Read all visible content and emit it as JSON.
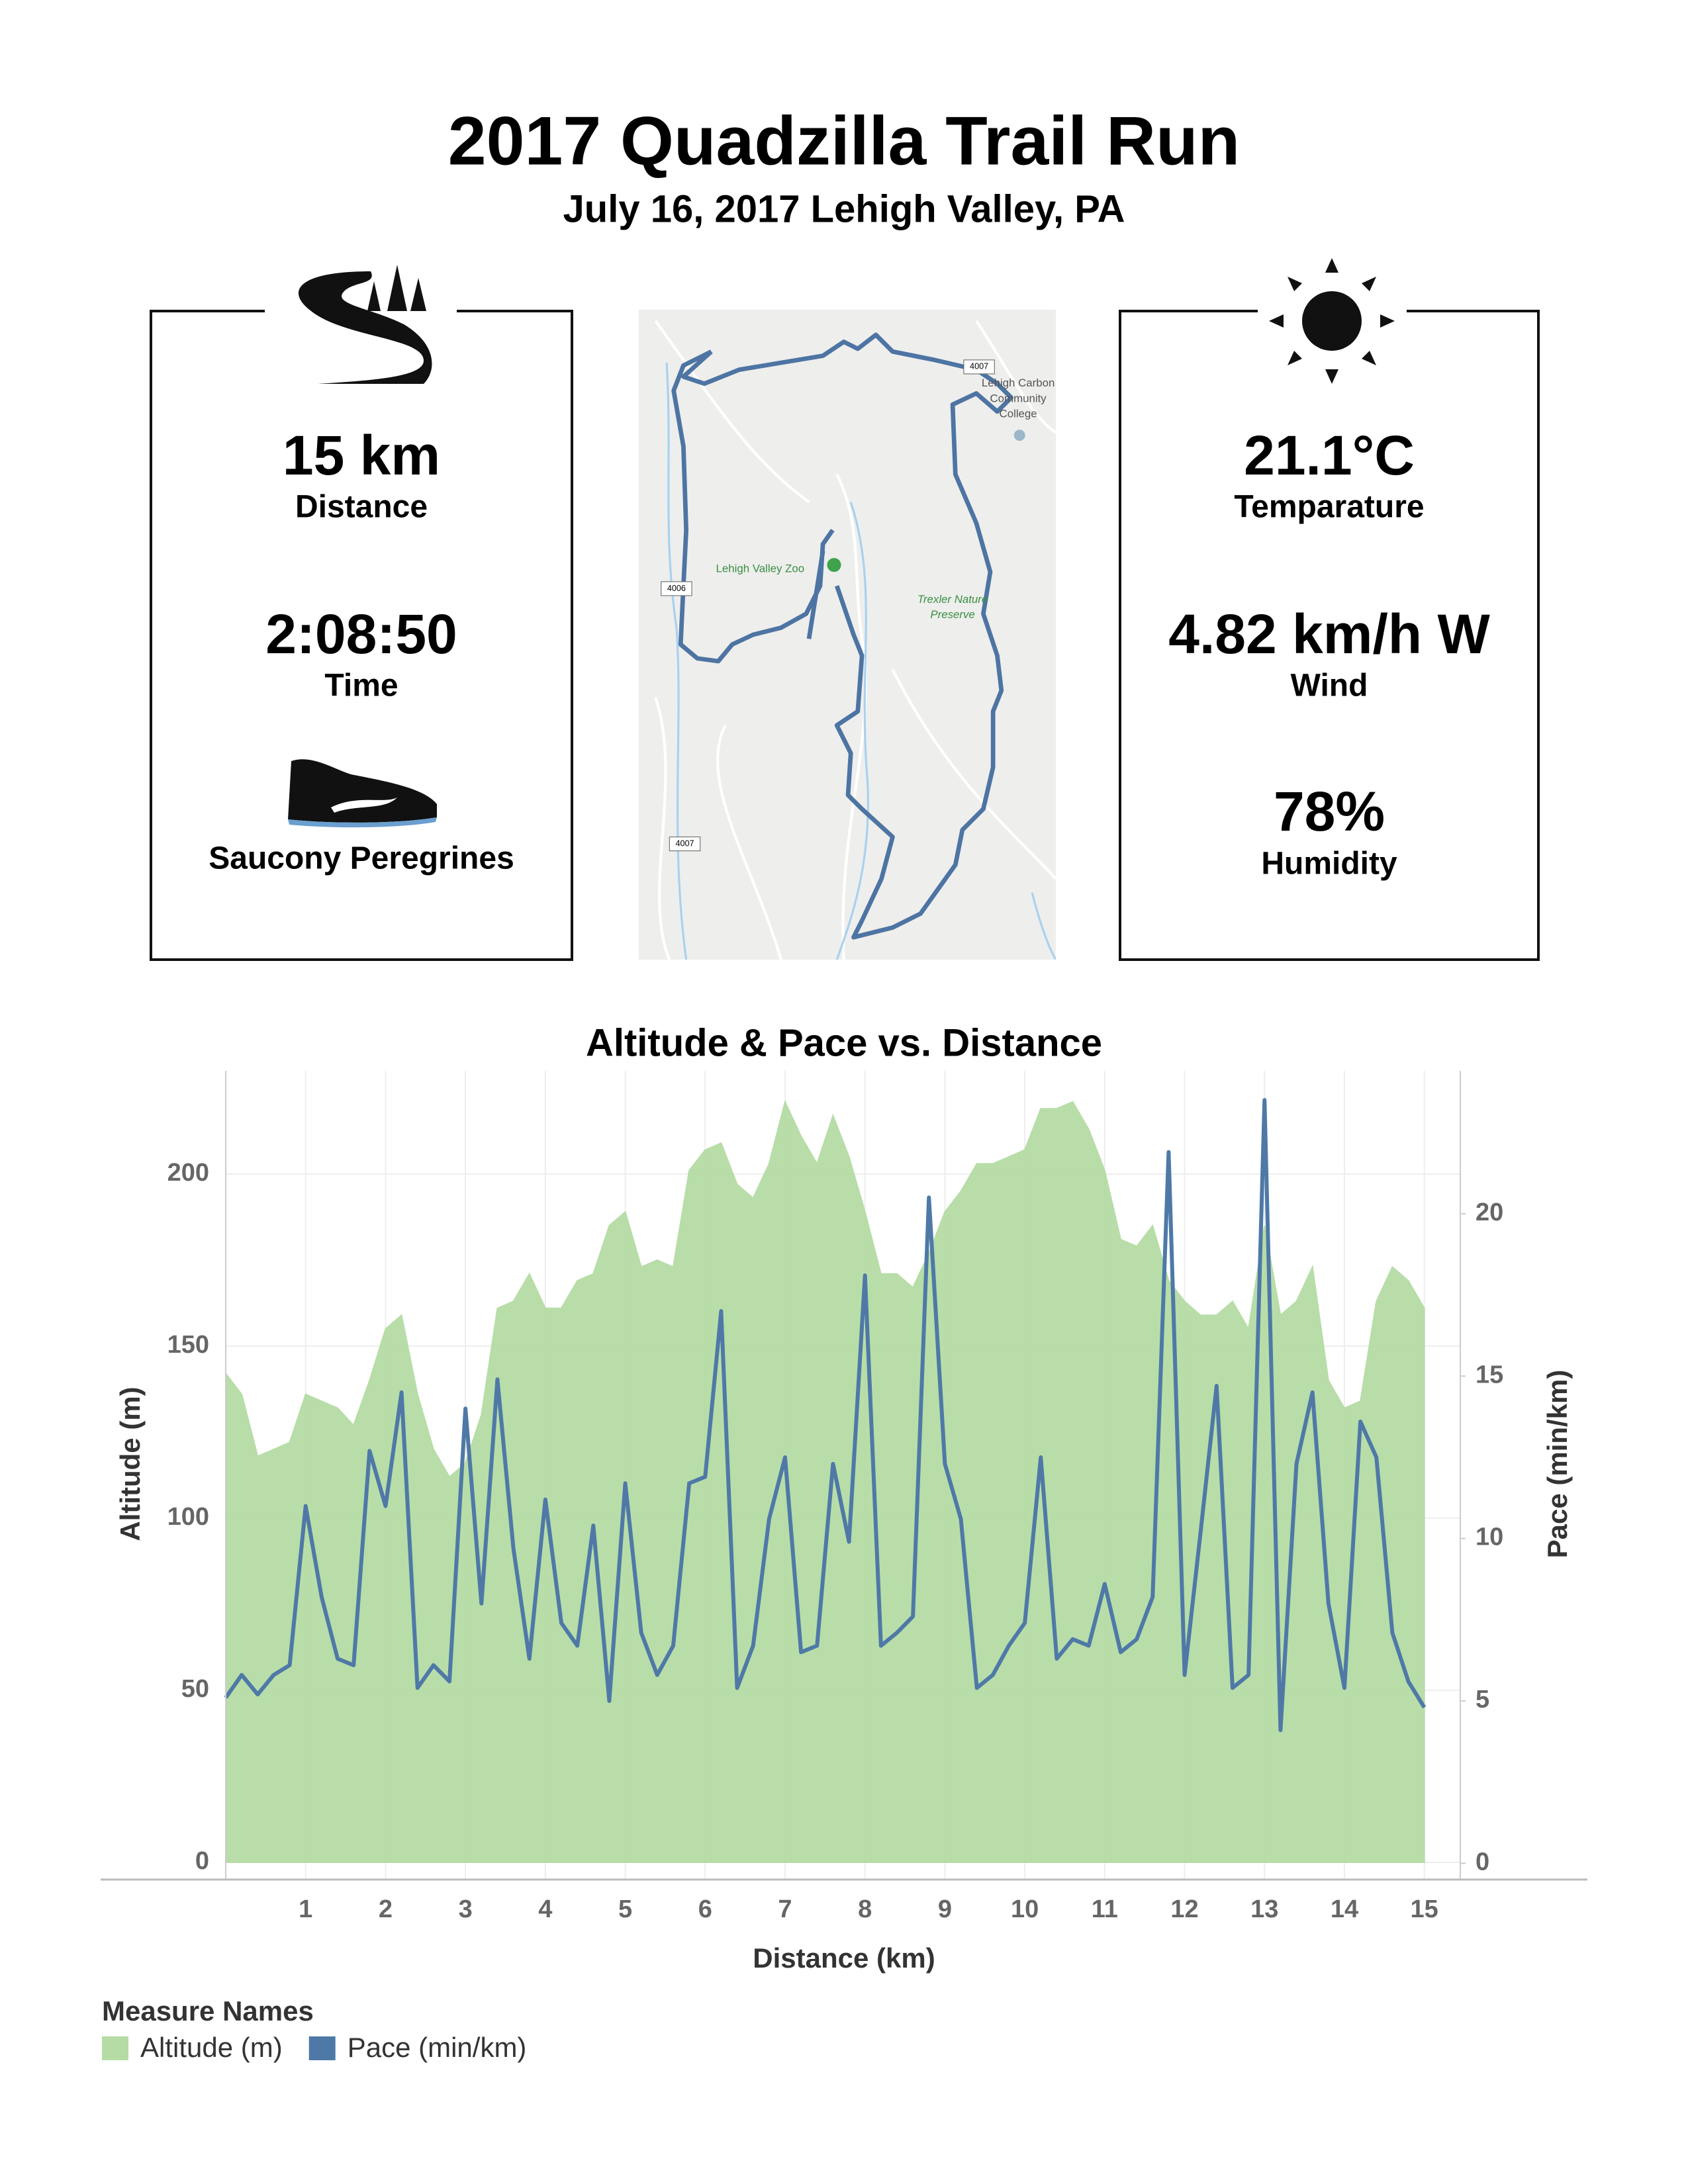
{
  "header": {
    "title": "2017 Quadzilla Trail Run",
    "subtitle": "July 16, 2017  Lehigh Valley, PA"
  },
  "stats": {
    "distance": {
      "value": "15 km",
      "label": "Distance"
    },
    "time": {
      "value": "2:08:50",
      "label": "Time"
    },
    "shoes": "Saucony Peregrines",
    "temperature": {
      "value": "21.1°C",
      "label": "Temparature"
    },
    "wind": {
      "value": "4.82 km/h W",
      "label": "Wind"
    },
    "humidity": {
      "value": "78%",
      "label": "Humidity"
    }
  },
  "map": {
    "labels": [
      "Lehigh Valley Zoo",
      "Trexler Nature",
      "Preserve",
      "Lehigh Carbon",
      "Community",
      "College",
      "4007",
      "4006",
      "4007"
    ]
  },
  "chart_data": {
    "type": "area-line",
    "title": "Altitude & Pace vs. Distance",
    "x_label": "Distance (km)",
    "y_label": "Altitude (m)",
    "y2_label": "Pace (min/km)",
    "legend_title": "Measure Names",
    "grid": true,
    "xlim": [
      0,
      15.45
    ],
    "xticks": [
      1,
      2,
      3,
      4,
      5,
      6,
      7,
      8,
      9,
      10,
      11,
      12,
      13,
      14,
      15
    ],
    "ylim": [
      -5,
      230
    ],
    "yticks": [
      0,
      50,
      100,
      150,
      200
    ],
    "y2lim": [
      -0.5,
      24.4
    ],
    "y2ticks": [
      0,
      5,
      10,
      15,
      20
    ],
    "x": [
      0,
      0.2,
      0.4,
      0.6,
      0.8,
      1.0,
      1.2,
      1.4,
      1.6,
      1.8,
      2.0,
      2.2,
      2.4,
      2.6,
      2.8,
      3.0,
      3.2,
      3.4,
      3.6,
      3.8,
      4.0,
      4.2,
      4.4,
      4.6,
      4.8,
      5.0,
      5.2,
      5.4,
      5.6,
      5.8,
      6.0,
      6.2,
      6.4,
      6.6,
      6.8,
      7.0,
      7.2,
      7.4,
      7.6,
      7.8,
      8.0,
      8.2,
      8.4,
      8.6,
      8.8,
      9.0,
      9.2,
      9.4,
      9.6,
      9.8,
      10.0,
      10.2,
      10.4,
      10.6,
      10.8,
      11.0,
      11.2,
      11.4,
      11.6,
      11.8,
      12.0,
      12.2,
      12.4,
      12.6,
      12.8,
      13.0,
      13.2,
      13.4,
      13.6,
      13.8,
      14.0,
      14.2,
      14.4,
      14.6,
      14.8,
      15.0
    ],
    "series": [
      {
        "name": "Altitude (m)",
        "color": "#b5dca4",
        "kind": "area",
        "values": [
          142,
          136,
          118,
          120,
          122,
          136,
          134,
          132,
          127,
          140,
          155,
          159,
          136,
          120,
          112,
          116,
          130,
          161,
          163,
          171,
          161,
          161,
          169,
          171,
          185,
          189,
          173,
          175,
          173,
          201,
          207,
          209,
          197,
          193,
          203,
          221,
          211,
          203,
          217,
          205,
          189,
          171,
          171,
          167,
          177,
          189,
          195,
          203,
          203,
          205,
          207,
          219,
          219,
          221,
          213,
          201,
          181,
          179,
          185,
          169,
          163,
          159,
          159,
          163,
          155,
          185,
          159,
          163,
          173,
          140,
          132,
          134,
          163,
          173,
          169,
          161
        ]
      },
      {
        "name": "Pace (min/km)",
        "color": "#4e79a7",
        "kind": "line",
        "axis": "y2",
        "values": [
          5.1,
          5.8,
          5.2,
          5.8,
          6.1,
          11.0,
          8.2,
          6.3,
          6.1,
          12.7,
          11.0,
          14.5,
          5.4,
          6.1,
          5.6,
          14.0,
          8.0,
          14.9,
          9.7,
          6.3,
          11.2,
          7.4,
          6.7,
          10.4,
          5.0,
          11.7,
          7.1,
          5.8,
          6.7,
          11.7,
          11.9,
          17.0,
          5.4,
          6.7,
          10.6,
          12.5,
          6.5,
          6.7,
          12.3,
          9.9,
          18.1,
          6.7,
          7.1,
          7.6,
          20.5,
          12.3,
          10.6,
          5.4,
          5.8,
          6.7,
          7.4,
          12.5,
          6.3,
          6.9,
          6.7,
          8.6,
          6.5,
          6.9,
          8.2,
          21.9,
          5.8,
          10.2,
          14.7,
          5.4,
          5.8,
          23.5,
          4.1,
          12.3,
          14.5,
          8.0,
          5.4,
          13.6,
          12.5,
          7.1,
          5.6,
          4.8
        ]
      }
    ]
  }
}
